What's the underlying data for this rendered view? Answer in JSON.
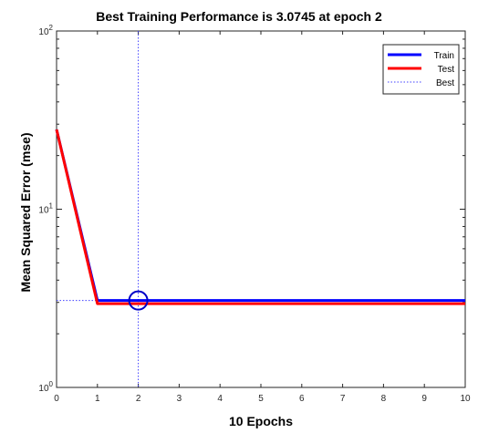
{
  "chart_data": {
    "type": "line",
    "title": "Best Training Performance is 3.0745 at epoch 2",
    "xlabel": "10 Epochs",
    "ylabel": "Mean Squared Error  (mse)",
    "xlim": [
      0,
      10
    ],
    "ylim": [
      1,
      100
    ],
    "yscale": "log",
    "grid": false,
    "legend_position": "top-right",
    "x_ticks": [
      "0",
      "1",
      "2",
      "3",
      "4",
      "5",
      "6",
      "7",
      "8",
      "9",
      "10"
    ],
    "y_ticks": [
      {
        "value": 1,
        "base": "10",
        "exp": "0"
      },
      {
        "value": 10,
        "base": "10",
        "exp": "1"
      },
      {
        "value": 100,
        "base": "10",
        "exp": "2"
      }
    ],
    "x": [
      0,
      1,
      2,
      3,
      4,
      5,
      6,
      7,
      8,
      9,
      10
    ],
    "series": [
      {
        "name": "Train",
        "color": "#0000ff",
        "values": [
          28,
          3.0745,
          3.0745,
          3.0745,
          3.0745,
          3.0745,
          3.0745,
          3.0745,
          3.0745,
          3.0745,
          3.0745
        ]
      },
      {
        "name": "Test",
        "color": "#ff0000",
        "values": [
          28,
          2.95,
          2.95,
          2.95,
          2.95,
          2.95,
          2.95,
          2.95,
          2.95,
          2.95,
          2.95
        ]
      }
    ],
    "best": {
      "name": "Best",
      "color": "#4040ff",
      "epoch": 2,
      "value": 3.0745
    }
  }
}
